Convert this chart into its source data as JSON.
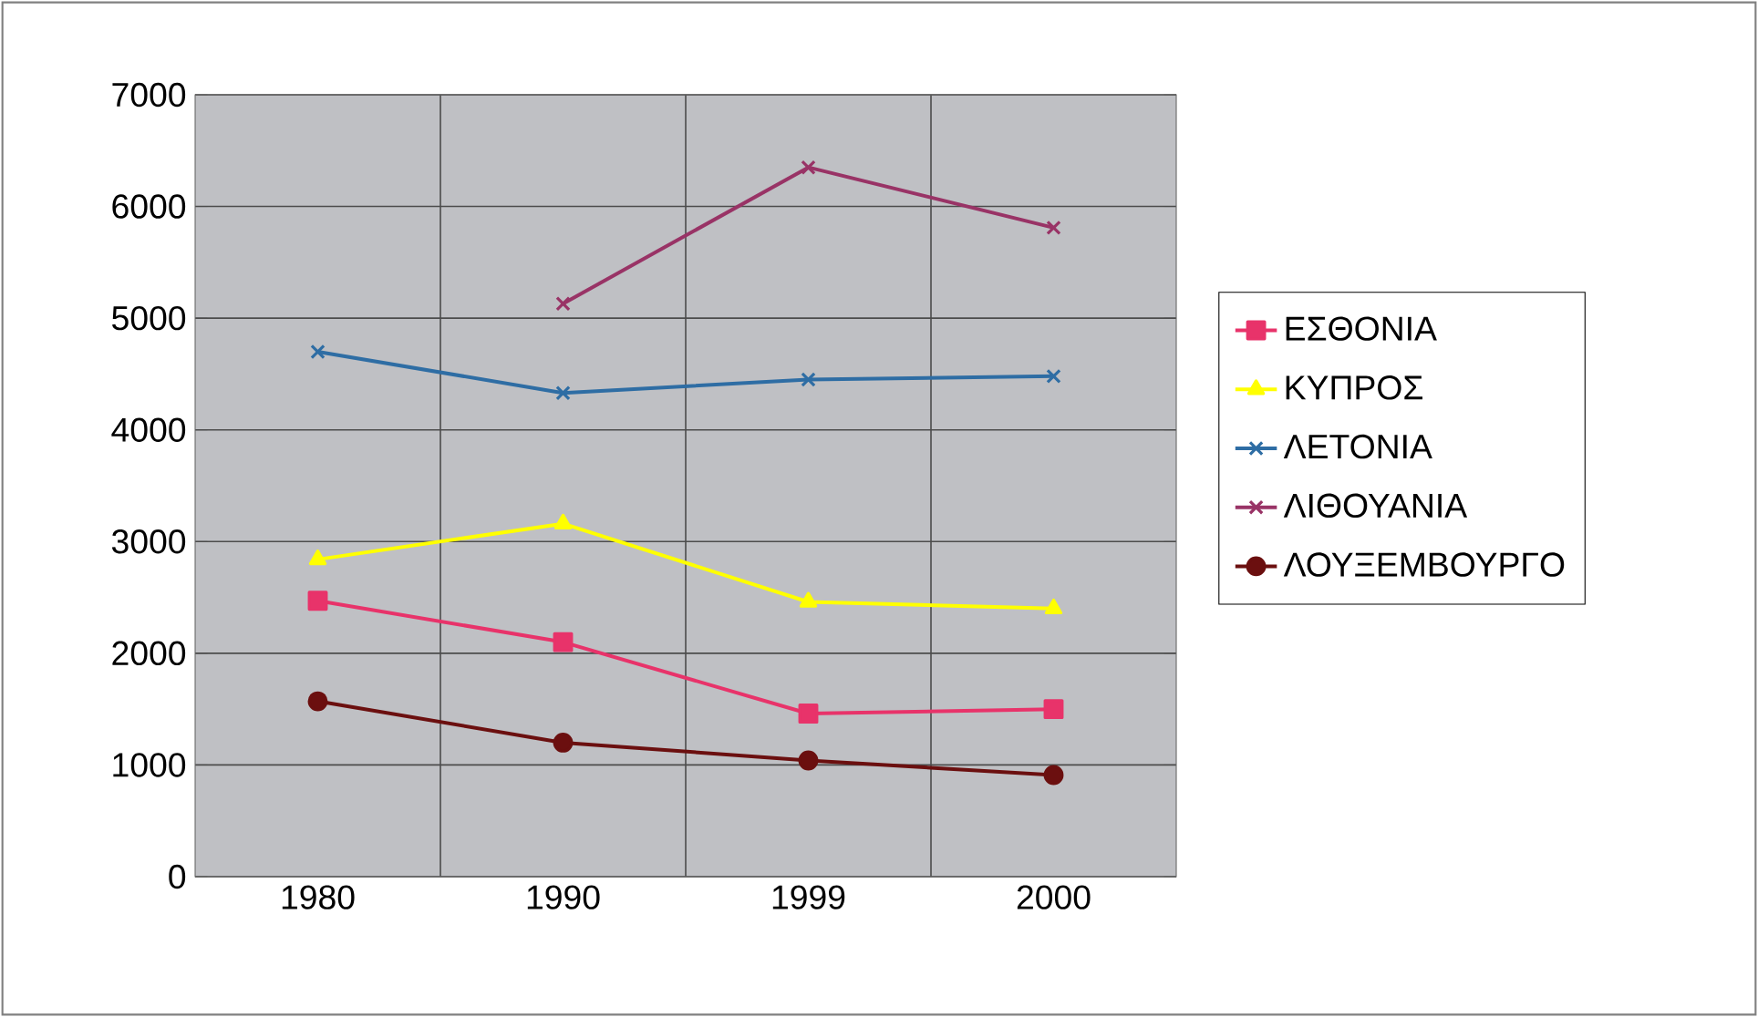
{
  "chart_data": {
    "type": "line",
    "categories": [
      "1980",
      "1990",
      "1999",
      "2000"
    ],
    "series": [
      {
        "name": "ΕΣΘΟΝΙΑ",
        "color": "#e8336a",
        "marker": "square",
        "values": [
          2470,
          2100,
          1460,
          1500
        ]
      },
      {
        "name": "ΚΥΠΡΟΣ",
        "color": "#ffff00",
        "marker": "triangle",
        "values": [
          2840,
          3160,
          2460,
          2400
        ]
      },
      {
        "name": "ΛΕΤΟΝΙΑ",
        "color": "#2e6da4",
        "marker": "cross",
        "values": [
          4700,
          4330,
          4450,
          4480
        ]
      },
      {
        "name": "ΛΙΘΟΥΑΝΙΑ",
        "color": "#993366",
        "marker": "cross",
        "values": [
          null,
          5130,
          6350,
          5810
        ]
      },
      {
        "name": "ΛΟΥΞΕΜΒΟΥΡΓΟ",
        "color": "#6b0f0f",
        "marker": "circle",
        "values": [
          1570,
          1200,
          1040,
          910
        ]
      }
    ],
    "ylim": [
      0,
      7000
    ],
    "yticks": [
      0,
      1000,
      2000,
      3000,
      4000,
      5000,
      6000,
      7000
    ],
    "grid": true,
    "legend": "right"
  }
}
